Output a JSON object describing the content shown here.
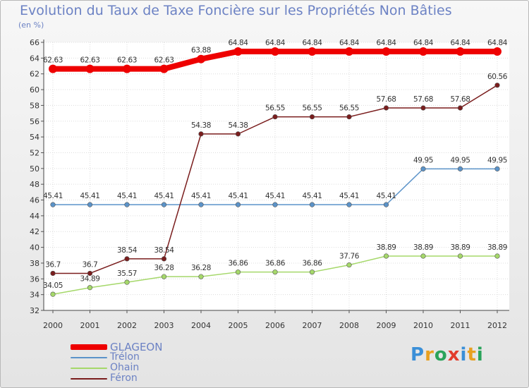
{
  "chart_data": {
    "type": "line",
    "title": "Evolution du Taux de Taxe Foncière sur les Propriétés Non Bâties",
    "ylabel": "(en %)",
    "xlabel": "",
    "x": [
      "2000",
      "2001",
      "2002",
      "2003",
      "2004",
      "2005",
      "2006",
      "2007",
      "2008",
      "2009",
      "2010",
      "2011",
      "2012"
    ],
    "ylim": [
      32,
      66
    ],
    "ytick_step": 2,
    "grid": true,
    "series": [
      {
        "name": "GLAGEON",
        "color": "#ee0000",
        "values": [
          62.63,
          62.63,
          62.63,
          62.63,
          63.88,
          64.84,
          64.84,
          64.84,
          64.84,
          64.84,
          64.84,
          64.84,
          64.84
        ],
        "labels": [
          "62.63",
          "62.63",
          "62.63",
          "62.63",
          "63.88",
          "64.84",
          "64.84",
          "64.84",
          "64.84",
          "64.84",
          "64.84",
          "64.84",
          "64.84"
        ]
      },
      {
        "name": "Trélon",
        "color": "#5b93c9",
        "values": [
          45.41,
          45.41,
          45.41,
          45.41,
          45.41,
          45.41,
          45.41,
          45.41,
          45.41,
          45.41,
          49.95,
          49.95,
          49.95
        ],
        "labels": [
          "45.41",
          "45.41",
          "45.41",
          "45.41",
          "45.41",
          "45.41",
          "45.41",
          "45.41",
          "45.41",
          "45.41",
          "49.95",
          "49.95",
          "49.95"
        ]
      },
      {
        "name": "Ohain",
        "color": "#a5d86a",
        "values": [
          34.05,
          34.89,
          35.57,
          36.28,
          36.28,
          36.86,
          36.86,
          36.86,
          37.76,
          38.89,
          38.89,
          38.89,
          38.89
        ],
        "labels": [
          "34.05",
          "34.89",
          "35.57",
          "36.28",
          "36.28",
          "36.86",
          "36.86",
          "36.86",
          "37.76",
          "38.89",
          "38.89",
          "38.89",
          "38.89"
        ]
      },
      {
        "name": "Féron",
        "color": "#7a1d1d",
        "values": [
          36.7,
          36.7,
          38.54,
          38.54,
          54.38,
          54.38,
          56.55,
          56.55,
          56.55,
          57.68,
          57.68,
          57.68,
          60.56
        ],
        "labels": [
          "36.7",
          "36.7",
          "38.54",
          "38.54",
          "54.38",
          "54.38",
          "56.55",
          "56.55",
          "56.55",
          "57.68",
          "57.68",
          "57.68",
          "60.56"
        ]
      }
    ]
  },
  "logo": {
    "letters": [
      "P",
      "r",
      "o",
      "x",
      "i",
      "t",
      "i"
    ]
  }
}
